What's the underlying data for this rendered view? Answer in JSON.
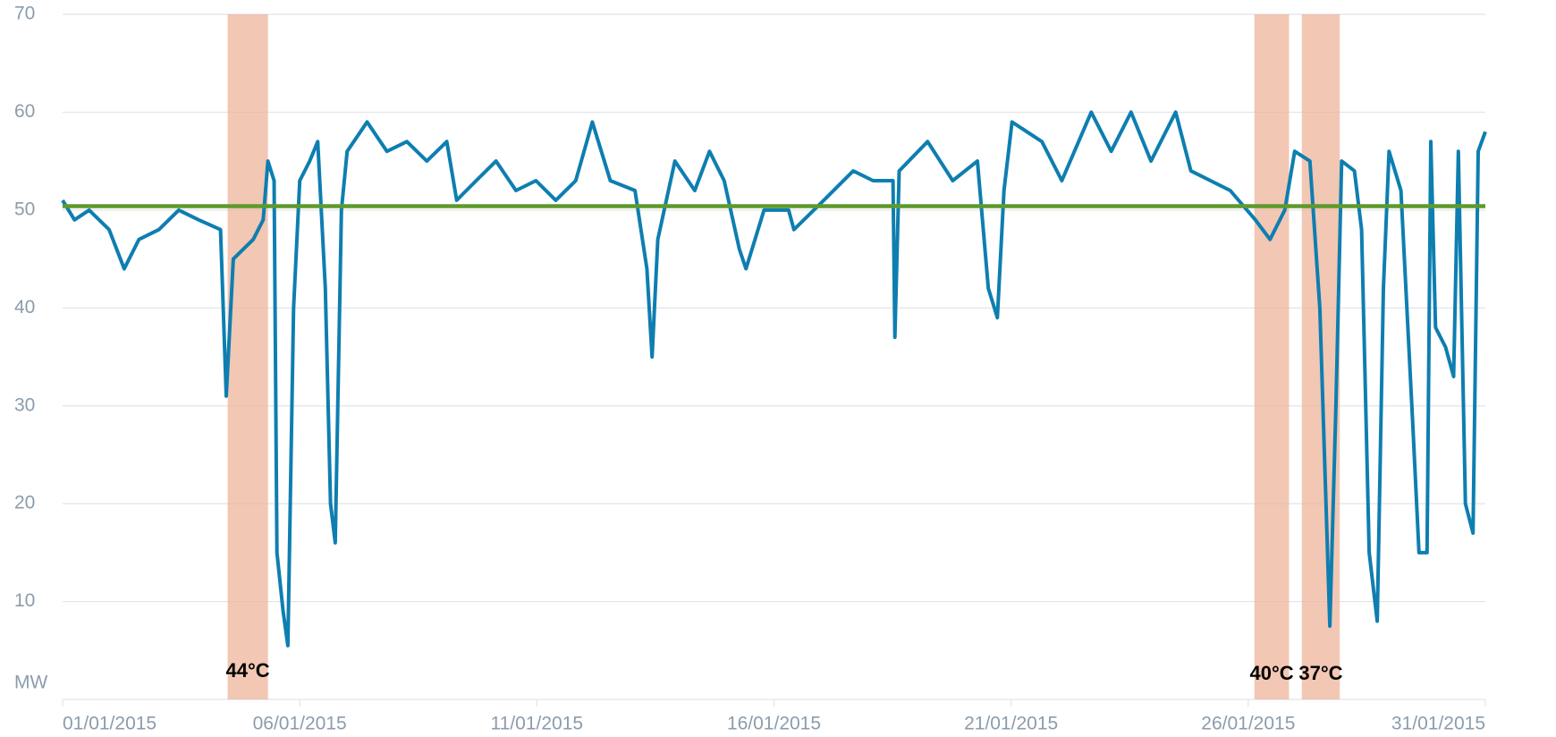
{
  "chart_data": {
    "type": "line",
    "y_label": "MW",
    "color": "#0e7eb0",
    "x": [
      1.0,
      1.25,
      1.56,
      1.98,
      2.3,
      2.61,
      3.03,
      3.45,
      3.87,
      4.33,
      4.45,
      4.6,
      5.02,
      5.23,
      5.33,
      5.46,
      5.52,
      5.65,
      5.75,
      5.87,
      6.0,
      6.21,
      6.38,
      6.54,
      6.65,
      6.75,
      6.88,
      7.0,
      7.42,
      7.84,
      8.26,
      8.68,
      9.1,
      9.31,
      9.72,
      10.14,
      10.56,
      10.98,
      11.4,
      11.82,
      12.17,
      12.55,
      13.07,
      13.32,
      13.43,
      13.55,
      13.91,
      14.33,
      14.64,
      14.95,
      15.27,
      15.41,
      15.79,
      16.31,
      16.42,
      17.05,
      17.67,
      18.09,
      18.51,
      18.55,
      18.64,
      19.24,
      19.77,
      20.29,
      20.52,
      20.71,
      20.85,
      21.02,
      21.65,
      22.07,
      22.69,
      23.11,
      23.53,
      23.95,
      24.47,
      24.79,
      25.62,
      26.15,
      26.46,
      26.77,
      26.98,
      27.3,
      27.51,
      27.72,
      27.85,
      27.97,
      28.24,
      28.39,
      28.55,
      28.72,
      28.85,
      28.97,
      29.22,
      29.47,
      29.6,
      29.77,
      29.85,
      29.95,
      30.16,
      30.33,
      30.43,
      30.58,
      30.74,
      30.85,
      31.0
    ],
    "values": [
      51,
      49,
      50,
      48,
      44,
      47,
      48,
      50,
      49,
      48,
      31,
      45,
      47,
      49,
      55,
      53,
      15,
      9,
      5.5,
      40,
      53,
      55,
      57,
      42,
      20,
      16,
      50,
      56,
      59,
      56,
      57,
      55,
      57,
      51,
      53,
      55,
      52,
      53,
      51,
      53,
      59,
      53,
      52,
      44,
      35,
      47,
      55,
      52,
      56,
      53,
      46,
      44,
      50,
      50,
      48,
      51,
      54,
      53,
      53,
      37,
      54,
      57,
      53,
      55,
      42,
      39,
      52,
      59,
      57,
      53,
      60,
      56,
      60,
      55,
      60,
      54,
      52,
      49,
      47,
      50,
      56,
      55,
      40,
      7.5,
      30,
      55,
      54,
      48,
      15,
      8,
      42,
      56,
      52,
      28,
      15,
      15,
      57,
      38,
      36,
      33,
      56,
      20,
      17,
      56,
      58
    ],
    "xlim": [
      1,
      31
    ],
    "xticks": [
      {
        "value": 1,
        "label": "01/01/2015"
      },
      {
        "value": 6,
        "label": "06/01/2015"
      },
      {
        "value": 11,
        "label": "11/01/2015"
      },
      {
        "value": 16,
        "label": "16/01/2015"
      },
      {
        "value": 21,
        "label": "21/01/2015"
      },
      {
        "value": 26,
        "label": "26/01/2015"
      },
      {
        "value": 31,
        "label": "31/01/2015"
      }
    ],
    "ylim": [
      0,
      70
    ],
    "yticks": [
      10,
      20,
      30,
      40,
      50,
      60,
      70
    ],
    "grid": true,
    "reference_line": {
      "value": 50.4,
      "color": "#5e9a2c"
    },
    "bands": [
      {
        "start": 4.48,
        "end": 5.33,
        "label": "44°C"
      },
      {
        "start": 26.13,
        "end": 26.86,
        "label": "40°C"
      },
      {
        "start": 27.13,
        "end": 27.93,
        "label": "37°C"
      }
    ],
    "band_color": "#eeb49b"
  }
}
